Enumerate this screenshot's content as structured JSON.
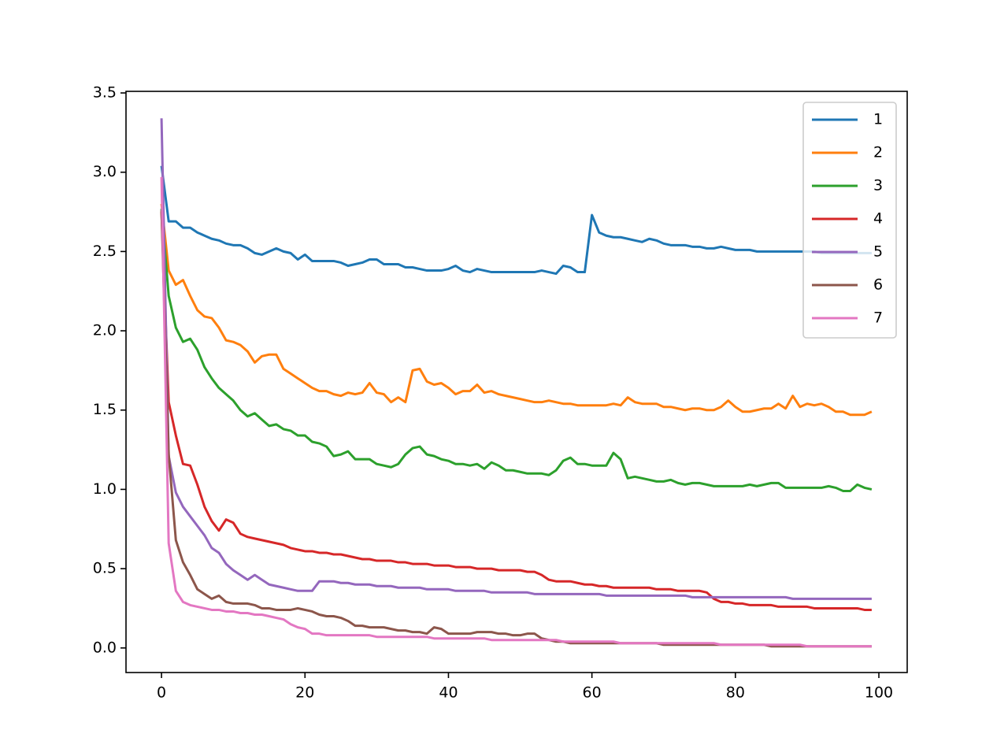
{
  "chart_data": {
    "type": "line",
    "x": [
      0,
      1,
      2,
      3,
      4,
      5,
      6,
      7,
      8,
      9,
      10,
      11,
      12,
      13,
      14,
      15,
      16,
      17,
      18,
      19,
      20,
      21,
      22,
      23,
      24,
      25,
      26,
      27,
      28,
      29,
      30,
      31,
      32,
      33,
      34,
      35,
      36,
      37,
      38,
      39,
      40,
      41,
      42,
      43,
      44,
      45,
      46,
      47,
      48,
      49,
      50,
      51,
      52,
      53,
      54,
      55,
      56,
      57,
      58,
      59,
      60,
      61,
      62,
      63,
      64,
      65,
      66,
      67,
      68,
      69,
      70,
      71,
      72,
      73,
      74,
      75,
      76,
      77,
      78,
      79,
      80,
      81,
      82,
      83,
      84,
      85,
      86,
      87,
      88,
      89,
      90,
      91,
      92,
      93,
      94,
      95,
      96,
      97,
      98,
      99
    ],
    "xlim": [
      -4.95,
      103.95
    ],
    "xticks": [
      0,
      20,
      40,
      60,
      80,
      100
    ],
    "ylim": [
      -0.155,
      3.51
    ],
    "yticks": [
      {
        "value": 0,
        "label": "0.0"
      },
      0.5,
      {
        "value": 1,
        "label": "1.0"
      },
      1.5,
      {
        "value": 2,
        "label": "2.0"
      },
      2.5,
      {
        "value": 3,
        "label": "3.0"
      },
      3.5
    ],
    "legend": "upper right",
    "series": [
      {
        "name": "1",
        "color": "#1f77b4",
        "values": [
          3.04,
          2.69,
          2.69,
          2.65,
          2.65,
          2.62,
          2.6,
          2.58,
          2.57,
          2.55,
          2.54,
          2.54,
          2.52,
          2.49,
          2.48,
          2.5,
          2.52,
          2.5,
          2.49,
          2.45,
          2.48,
          2.44,
          2.44,
          2.44,
          2.44,
          2.43,
          2.41,
          2.42,
          2.43,
          2.45,
          2.45,
          2.42,
          2.42,
          2.42,
          2.4,
          2.4,
          2.39,
          2.38,
          2.38,
          2.38,
          2.39,
          2.41,
          2.38,
          2.37,
          2.39,
          2.38,
          2.37,
          2.37,
          2.37,
          2.37,
          2.37,
          2.37,
          2.37,
          2.38,
          2.37,
          2.36,
          2.41,
          2.4,
          2.37,
          2.37,
          2.73,
          2.62,
          2.6,
          2.59,
          2.59,
          2.58,
          2.57,
          2.56,
          2.58,
          2.57,
          2.55,
          2.54,
          2.54,
          2.54,
          2.53,
          2.53,
          2.52,
          2.52,
          2.53,
          2.52,
          2.51,
          2.51,
          2.51,
          2.5,
          2.5,
          2.5,
          2.5,
          2.5,
          2.5,
          2.5,
          2.5,
          2.5,
          2.49,
          2.49,
          2.49,
          2.49,
          2.49,
          2.49,
          2.49,
          2.49
        ]
      },
      {
        "name": "2",
        "color": "#ff7f0e",
        "values": [
          2.8,
          2.38,
          2.29,
          2.32,
          2.22,
          2.13,
          2.09,
          2.08,
          2.02,
          1.94,
          1.93,
          1.91,
          1.87,
          1.8,
          1.84,
          1.85,
          1.85,
          1.76,
          1.73,
          1.7,
          1.67,
          1.64,
          1.62,
          1.62,
          1.6,
          1.59,
          1.61,
          1.6,
          1.61,
          1.67,
          1.61,
          1.6,
          1.55,
          1.58,
          1.55,
          1.75,
          1.76,
          1.68,
          1.66,
          1.67,
          1.64,
          1.6,
          1.62,
          1.62,
          1.66,
          1.61,
          1.62,
          1.6,
          1.59,
          1.58,
          1.57,
          1.56,
          1.55,
          1.55,
          1.56,
          1.55,
          1.54,
          1.54,
          1.53,
          1.53,
          1.53,
          1.53,
          1.53,
          1.54,
          1.53,
          1.58,
          1.55,
          1.54,
          1.54,
          1.54,
          1.52,
          1.52,
          1.51,
          1.5,
          1.51,
          1.51,
          1.5,
          1.5,
          1.52,
          1.56,
          1.52,
          1.49,
          1.49,
          1.5,
          1.51,
          1.51,
          1.54,
          1.51,
          1.59,
          1.52,
          1.54,
          1.53,
          1.54,
          1.52,
          1.49,
          1.49,
          1.47,
          1.47,
          1.47,
          1.49
        ]
      },
      {
        "name": "3",
        "color": "#2ca02c",
        "values": [
          2.77,
          2.22,
          2.02,
          1.93,
          1.95,
          1.88,
          1.77,
          1.7,
          1.64,
          1.6,
          1.56,
          1.5,
          1.46,
          1.48,
          1.44,
          1.4,
          1.41,
          1.38,
          1.37,
          1.34,
          1.34,
          1.3,
          1.29,
          1.27,
          1.21,
          1.22,
          1.24,
          1.19,
          1.19,
          1.19,
          1.16,
          1.15,
          1.14,
          1.16,
          1.22,
          1.26,
          1.27,
          1.22,
          1.21,
          1.19,
          1.18,
          1.16,
          1.16,
          1.15,
          1.16,
          1.13,
          1.17,
          1.15,
          1.12,
          1.12,
          1.11,
          1.1,
          1.1,
          1.1,
          1.09,
          1.12,
          1.18,
          1.2,
          1.16,
          1.16,
          1.15,
          1.15,
          1.15,
          1.23,
          1.19,
          1.07,
          1.08,
          1.07,
          1.06,
          1.05,
          1.05,
          1.06,
          1.04,
          1.03,
          1.04,
          1.04,
          1.03,
          1.02,
          1.02,
          1.02,
          1.02,
          1.02,
          1.03,
          1.02,
          1.03,
          1.04,
          1.04,
          1.01,
          1.01,
          1.01,
          1.01,
          1.01,
          1.01,
          1.02,
          1.01,
          0.99,
          0.99,
          1.03,
          1.01,
          1.0
        ]
      },
      {
        "name": "4",
        "color": "#d62728",
        "values": [
          2.75,
          1.55,
          1.34,
          1.16,
          1.15,
          1.03,
          0.89,
          0.8,
          0.74,
          0.81,
          0.79,
          0.72,
          0.7,
          0.69,
          0.68,
          0.67,
          0.66,
          0.65,
          0.63,
          0.62,
          0.61,
          0.61,
          0.6,
          0.6,
          0.59,
          0.59,
          0.58,
          0.57,
          0.56,
          0.56,
          0.55,
          0.55,
          0.55,
          0.54,
          0.54,
          0.53,
          0.53,
          0.53,
          0.52,
          0.52,
          0.52,
          0.51,
          0.51,
          0.51,
          0.5,
          0.5,
          0.5,
          0.49,
          0.49,
          0.49,
          0.49,
          0.48,
          0.48,
          0.46,
          0.43,
          0.42,
          0.42,
          0.42,
          0.41,
          0.4,
          0.4,
          0.39,
          0.39,
          0.38,
          0.38,
          0.38,
          0.38,
          0.38,
          0.38,
          0.37,
          0.37,
          0.37,
          0.36,
          0.36,
          0.36,
          0.36,
          0.35,
          0.31,
          0.29,
          0.29,
          0.28,
          0.28,
          0.27,
          0.27,
          0.27,
          0.27,
          0.26,
          0.26,
          0.26,
          0.26,
          0.26,
          0.25,
          0.25,
          0.25,
          0.25,
          0.25,
          0.25,
          0.25,
          0.24,
          0.24
        ]
      },
      {
        "name": "5",
        "color": "#9467bd",
        "values": [
          3.34,
          1.21,
          0.98,
          0.89,
          0.83,
          0.77,
          0.71,
          0.63,
          0.6,
          0.53,
          0.49,
          0.46,
          0.43,
          0.46,
          0.43,
          0.4,
          0.39,
          0.38,
          0.37,
          0.36,
          0.36,
          0.36,
          0.42,
          0.42,
          0.42,
          0.41,
          0.41,
          0.4,
          0.4,
          0.4,
          0.39,
          0.39,
          0.39,
          0.38,
          0.38,
          0.38,
          0.38,
          0.37,
          0.37,
          0.37,
          0.37,
          0.36,
          0.36,
          0.36,
          0.36,
          0.36,
          0.35,
          0.35,
          0.35,
          0.35,
          0.35,
          0.35,
          0.34,
          0.34,
          0.34,
          0.34,
          0.34,
          0.34,
          0.34,
          0.34,
          0.34,
          0.34,
          0.33,
          0.33,
          0.33,
          0.33,
          0.33,
          0.33,
          0.33,
          0.33,
          0.33,
          0.33,
          0.33,
          0.33,
          0.32,
          0.32,
          0.32,
          0.32,
          0.32,
          0.32,
          0.32,
          0.32,
          0.32,
          0.32,
          0.32,
          0.32,
          0.32,
          0.32,
          0.31,
          0.31,
          0.31,
          0.31,
          0.31,
          0.31,
          0.31,
          0.31,
          0.31,
          0.31,
          0.31,
          0.31
        ]
      },
      {
        "name": "6",
        "color": "#8c564b",
        "values": [
          2.76,
          1.22,
          0.68,
          0.54,
          0.46,
          0.37,
          0.34,
          0.31,
          0.33,
          0.29,
          0.28,
          0.28,
          0.28,
          0.27,
          0.25,
          0.25,
          0.24,
          0.24,
          0.24,
          0.25,
          0.24,
          0.23,
          0.21,
          0.2,
          0.2,
          0.19,
          0.17,
          0.14,
          0.14,
          0.13,
          0.13,
          0.13,
          0.12,
          0.11,
          0.11,
          0.1,
          0.1,
          0.09,
          0.13,
          0.12,
          0.09,
          0.09,
          0.09,
          0.09,
          0.1,
          0.1,
          0.1,
          0.09,
          0.09,
          0.08,
          0.08,
          0.09,
          0.09,
          0.06,
          0.05,
          0.04,
          0.04,
          0.03,
          0.03,
          0.03,
          0.03,
          0.03,
          0.03,
          0.03,
          0.03,
          0.03,
          0.03,
          0.03,
          0.03,
          0.03,
          0.02,
          0.02,
          0.02,
          0.02,
          0.02,
          0.02,
          0.02,
          0.02,
          0.02,
          0.02,
          0.02,
          0.02,
          0.02,
          0.02,
          0.02,
          0.01,
          0.01,
          0.01,
          0.01,
          0.01,
          0.01,
          0.01,
          0.01,
          0.01,
          0.01,
          0.01,
          0.01,
          0.01,
          0.01,
          0.01
        ]
      },
      {
        "name": "7",
        "color": "#e377c2",
        "values": [
          2.97,
          0.66,
          0.36,
          0.29,
          0.27,
          0.26,
          0.25,
          0.24,
          0.24,
          0.23,
          0.23,
          0.22,
          0.22,
          0.21,
          0.21,
          0.2,
          0.19,
          0.18,
          0.15,
          0.13,
          0.12,
          0.09,
          0.09,
          0.08,
          0.08,
          0.08,
          0.08,
          0.08,
          0.08,
          0.08,
          0.07,
          0.07,
          0.07,
          0.07,
          0.07,
          0.07,
          0.07,
          0.07,
          0.06,
          0.06,
          0.06,
          0.06,
          0.06,
          0.06,
          0.06,
          0.06,
          0.05,
          0.05,
          0.05,
          0.05,
          0.05,
          0.05,
          0.05,
          0.05,
          0.05,
          0.05,
          0.04,
          0.04,
          0.04,
          0.04,
          0.04,
          0.04,
          0.04,
          0.04,
          0.03,
          0.03,
          0.03,
          0.03,
          0.03,
          0.03,
          0.03,
          0.03,
          0.03,
          0.03,
          0.03,
          0.03,
          0.03,
          0.03,
          0.02,
          0.02,
          0.02,
          0.02,
          0.02,
          0.02,
          0.02,
          0.02,
          0.02,
          0.02,
          0.02,
          0.02,
          0.01,
          0.01,
          0.01,
          0.01,
          0.01,
          0.01,
          0.01,
          0.01,
          0.01,
          0.01
        ]
      }
    ]
  }
}
